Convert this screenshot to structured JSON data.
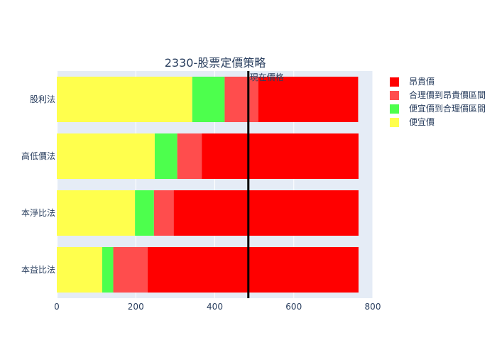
{
  "chart_data": {
    "type": "bar",
    "orientation": "horizontal",
    "barmode": "stack",
    "title": "2330-股票定價策略",
    "categories": [
      "本益比法",
      "本淨比法",
      "高低價法",
      "股利法"
    ],
    "series": [
      {
        "name": "便宜價",
        "color": "#ffff4d",
        "values": [
          115,
          198,
          248,
          343
        ]
      },
      {
        "name": "便宜價到合理價區間",
        "color": "#4dff4d",
        "values": [
          28,
          48,
          57,
          82
        ]
      },
      {
        "name": "合理價到昂貴價區間",
        "color": "#ff4d4d",
        "values": [
          87,
          50,
          62,
          85
        ]
      },
      {
        "name": "昂貴價",
        "color": "#ff0000",
        "values": [
          534,
          468,
          397,
          253
        ]
      }
    ],
    "legend_order": [
      "昂貴價",
      "合理價到昂貴價區間",
      "便宜價到合理價區間",
      "便宜價"
    ],
    "xlim": [
      0,
      800
    ],
    "xticks": [
      0,
      200,
      400,
      600,
      800
    ],
    "grid": true,
    "legend_position": "top-right",
    "reference_line": {
      "label": "現在價格",
      "value": 485
    }
  }
}
